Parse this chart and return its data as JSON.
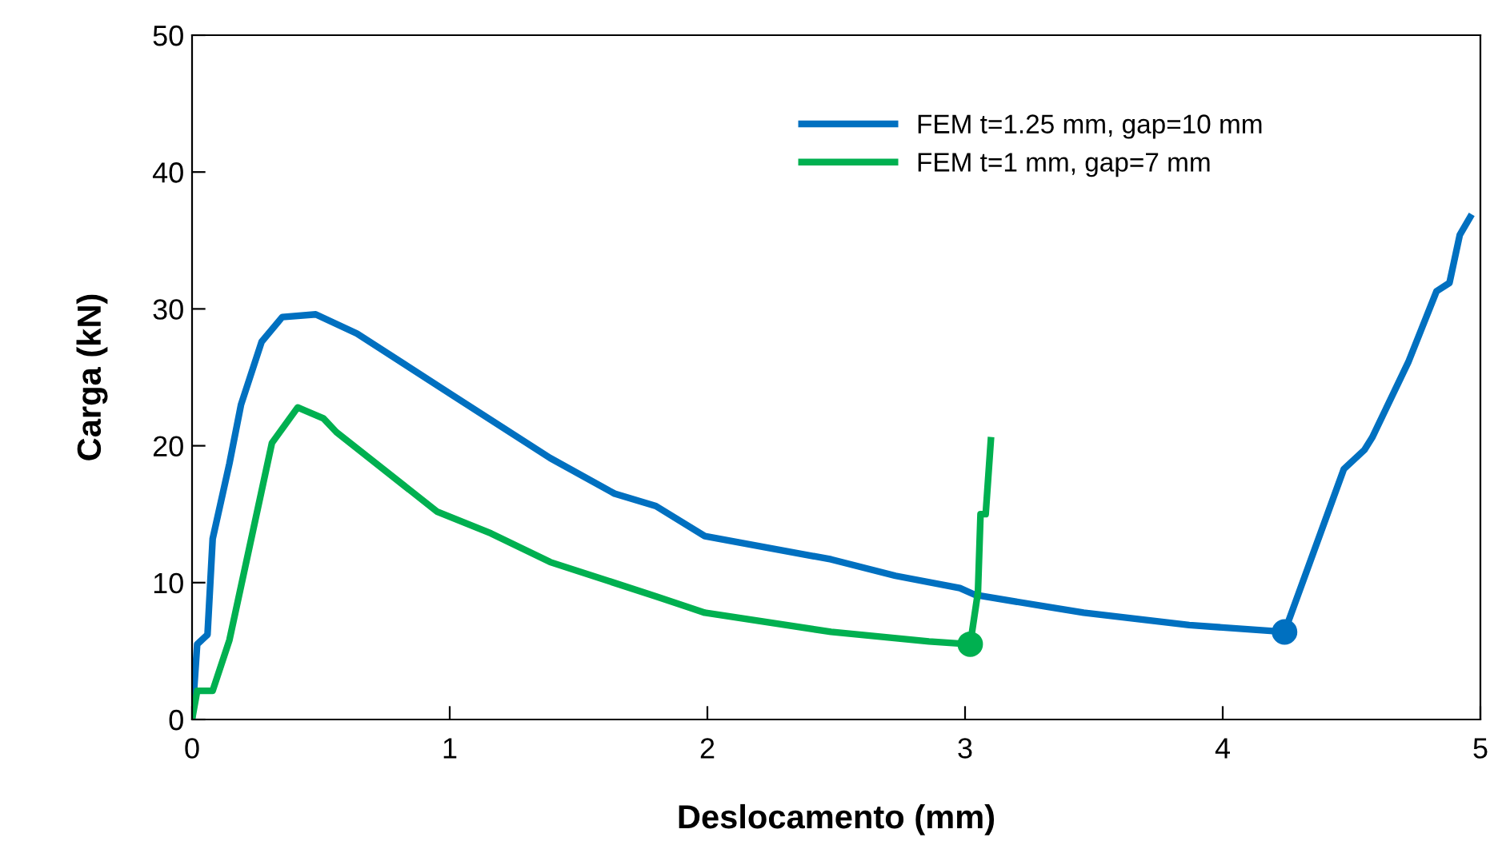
{
  "chart_data": {
    "type": "line",
    "xlabel": "Deslocamento (mm)",
    "ylabel": "Carga (kN)",
    "xlim": [
      0,
      5
    ],
    "ylim": [
      0,
      50
    ],
    "xticks": [
      0,
      1,
      2,
      3,
      4,
      5
    ],
    "yticks": [
      0,
      10,
      20,
      30,
      40,
      50
    ],
    "grid": false,
    "legend": "top right",
    "marker": "none",
    "line_style": "solid",
    "series": [
      {
        "name": "FEM t=1.25 mm, gap=10 mm",
        "color": "#0070c0",
        "x": [
          0,
          0.02,
          0.06,
          0.08,
          0.145,
          0.19,
          0.27,
          0.35,
          0.48,
          0.64,
          1.01,
          1.39,
          1.64,
          1.8,
          1.99,
          2.48,
          2.73,
          2.98,
          3.04,
          3.46,
          3.87,
          4.24,
          4.47,
          4.55,
          4.58,
          4.72,
          4.83,
          4.88,
          4.92,
          4.96
        ],
        "values": [
          0,
          5.5,
          6.2,
          13.2,
          18.7,
          23,
          27.6,
          29.4,
          29.6,
          28.2,
          23.7,
          19.1,
          16.5,
          15.6,
          13.4,
          11.7,
          10.5,
          9.6,
          9.1,
          7.8,
          6.9,
          6.4,
          18.3,
          19.7,
          20.6,
          26.1,
          31.3,
          31.9,
          35.4,
          36.7
        ]
      },
      {
        "name": "FEM t=1 mm, gap=7 mm",
        "color": "#00b050",
        "x": [
          0,
          0.02,
          0.08,
          0.145,
          0.31,
          0.41,
          0.51,
          0.56,
          0.95,
          1.16,
          1.39,
          1.8,
          1.99,
          2.48,
          2.86,
          3.02,
          3.05,
          3.06,
          3.08,
          3.1
        ],
        "values": [
          0,
          2.1,
          2.1,
          5.8,
          20.2,
          22.8,
          22,
          21,
          15.2,
          13.6,
          11.5,
          9,
          7.8,
          6.4,
          5.7,
          5.5,
          9.3,
          15,
          15,
          20.4
        ]
      },
      {
        "type": "scatter",
        "marker": "circle",
        "color": "#0070c0",
        "x": [
          4.24
        ],
        "values": [
          6.4
        ]
      },
      {
        "type": "scatter",
        "marker": "circle",
        "color": "#00b050",
        "x": [
          3.02
        ],
        "values": [
          5.5
        ]
      }
    ]
  }
}
